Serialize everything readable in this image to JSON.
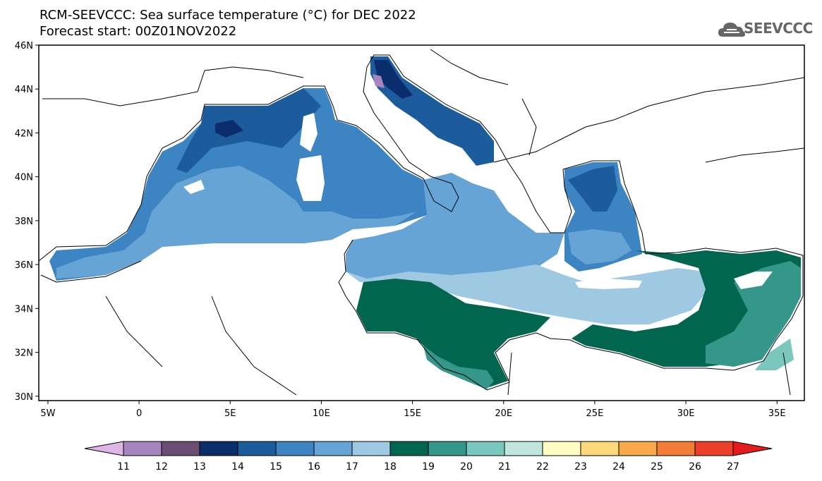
{
  "title_line1": "RCM-SEEVCCC: Sea surface temperature (°C) for DEC 2022",
  "title_line2": "Forecast start: 00Z01NOV2022",
  "logo": {
    "text": "SEEVCCC",
    "icon": "cloud-icon"
  },
  "map": {
    "lon_range": [
      -5.5,
      36.5
    ],
    "lat_range": [
      29.8,
      46
    ],
    "lon_ticks": [
      {
        "value": -5,
        "label": "5W"
      },
      {
        "value": 0,
        "label": "0"
      },
      {
        "value": 5,
        "label": "5E"
      },
      {
        "value": 10,
        "label": "10E"
      },
      {
        "value": 15,
        "label": "15E"
      },
      {
        "value": 20,
        "label": "20E"
      },
      {
        "value": 25,
        "label": "25E"
      },
      {
        "value": 30,
        "label": "30E"
      },
      {
        "value": 35,
        "label": "35E"
      }
    ],
    "lat_ticks": [
      {
        "value": 30,
        "label": "30N"
      },
      {
        "value": 32,
        "label": "32N"
      },
      {
        "value": 34,
        "label": "34N"
      },
      {
        "value": 36,
        "label": "36N"
      },
      {
        "value": 38,
        "label": "38N"
      },
      {
        "value": 40,
        "label": "40N"
      },
      {
        "value": 42,
        "label": "42N"
      },
      {
        "value": 44,
        "label": "44N"
      },
      {
        "value": 46,
        "label": "46N"
      }
    ]
  },
  "colorbar": {
    "levels": [
      "11",
      "12",
      "13",
      "14",
      "15",
      "16",
      "17",
      "18",
      "19",
      "20",
      "21",
      "22",
      "23",
      "24",
      "25",
      "26",
      "27"
    ],
    "colors": [
      "#ddb5e6",
      "#a684be",
      "#6b4c73",
      "#0c2d6b",
      "#1c5c9c",
      "#3d84c3",
      "#67a4d6",
      "#9fc8e3",
      "#006650",
      "#34978a",
      "#7ac7bd",
      "#bfe6de",
      "#fffbc2",
      "#fcd97a",
      "#f8a94a",
      "#f47d3a",
      "#ec3f2b",
      "#e41a1c"
    ]
  }
}
